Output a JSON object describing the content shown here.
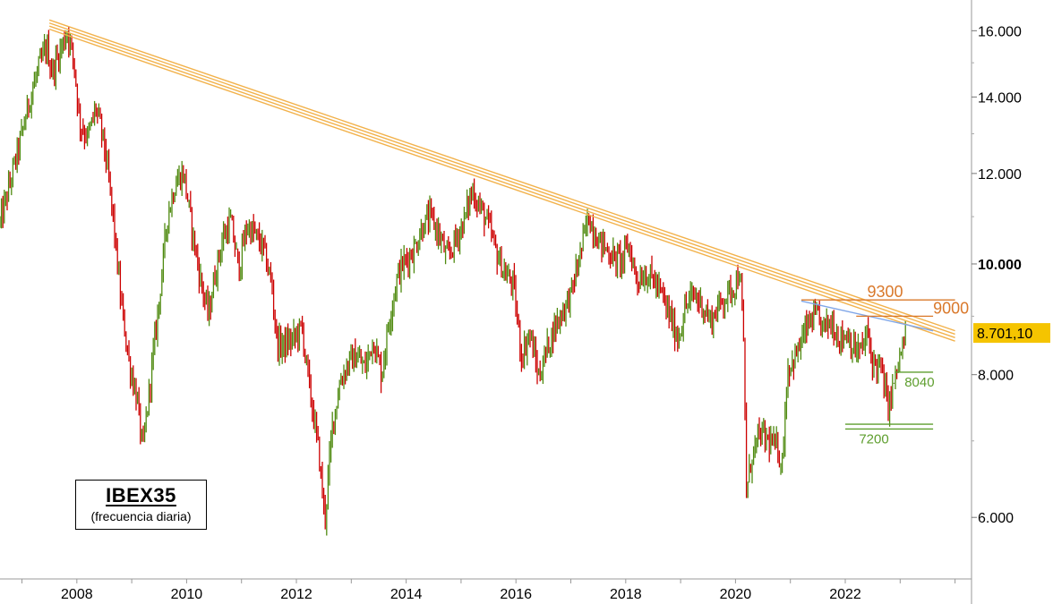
{
  "chart_data": {
    "type": "candlestick",
    "title": "IBEX35",
    "subtitle": "(frecuencia diaria)",
    "y_scale": "log",
    "ylim": [
      5300,
      16900
    ],
    "xlim": [
      2006.6,
      2024.3
    ],
    "y_ticks": [
      {
        "value": 16000,
        "label": "16.000",
        "bold": false
      },
      {
        "value": 14000,
        "label": "14.000",
        "bold": false
      },
      {
        "value": 12000,
        "label": "12.000",
        "bold": false
      },
      {
        "value": 10000,
        "label": "10.000",
        "bold": true
      },
      {
        "value": 8000,
        "label": "8.000",
        "bold": false
      },
      {
        "value": 6000,
        "label": "6.000",
        "bold": false
      }
    ],
    "x_ticks": [
      {
        "value": 2008,
        "label": "2008"
      },
      {
        "value": 2010,
        "label": "2010"
      },
      {
        "value": 2012,
        "label": "2012"
      },
      {
        "value": 2014,
        "label": "2014"
      },
      {
        "value": 2016,
        "label": "2016"
      },
      {
        "value": 2018,
        "label": "2018"
      },
      {
        "value": 2020,
        "label": "2020"
      },
      {
        "value": 2022,
        "label": "2022"
      }
    ],
    "last_price": {
      "value": 8701.1,
      "label": "8.701,10",
      "color": "#f5c400"
    },
    "colors": {
      "up": "#4f8a10",
      "down": "#cc0000",
      "trend": "#f2b24c",
      "blue_line": "#7fa6e8",
      "orange_level": "#d9782a",
      "green_level": "#5e9e2e"
    },
    "price_path": [
      [
        2006.6,
        10850
      ],
      [
        2006.75,
        11600
      ],
      [
        2006.95,
        12700
      ],
      [
        2007.15,
        14000
      ],
      [
        2007.3,
        14800
      ],
      [
        2007.45,
        15500
      ],
      [
        2007.55,
        14700
      ],
      [
        2007.7,
        15400
      ],
      [
        2007.83,
        16000
      ],
      [
        2007.95,
        15000
      ],
      [
        2008.05,
        13300
      ],
      [
        2008.2,
        12900
      ],
      [
        2008.35,
        13700
      ],
      [
        2008.5,
        12700
      ],
      [
        2008.65,
        11100
      ],
      [
        2008.8,
        9300
      ],
      [
        2008.95,
        8200
      ],
      [
        2009.1,
        7600
      ],
      [
        2009.2,
        6850
      ],
      [
        2009.35,
        8000
      ],
      [
        2009.5,
        9300
      ],
      [
        2009.65,
        11000
      ],
      [
        2009.8,
        11800
      ],
      [
        2009.95,
        12000
      ],
      [
        2010.1,
        10700
      ],
      [
        2010.25,
        9700
      ],
      [
        2010.4,
        9000
      ],
      [
        2010.5,
        9700
      ],
      [
        2010.65,
        10500
      ],
      [
        2010.8,
        10900
      ],
      [
        2010.95,
        9900
      ],
      [
        2011.1,
        10800
      ],
      [
        2011.25,
        10600
      ],
      [
        2011.4,
        10300
      ],
      [
        2011.55,
        9600
      ],
      [
        2011.65,
        8500
      ],
      [
        2011.8,
        8500
      ],
      [
        2011.95,
        8600
      ],
      [
        2012.1,
        8800
      ],
      [
        2012.25,
        7700
      ],
      [
        2012.4,
        6900
      ],
      [
        2012.52,
        5960
      ],
      [
        2012.65,
        7200
      ],
      [
        2012.8,
        7900
      ],
      [
        2012.95,
        8200
      ],
      [
        2013.1,
        8300
      ],
      [
        2013.25,
        8100
      ],
      [
        2013.4,
        8600
      ],
      [
        2013.55,
        8000
      ],
      [
        2013.7,
        9000
      ],
      [
        2013.85,
        9800
      ],
      [
        2014.0,
        10100
      ],
      [
        2014.15,
        10300
      ],
      [
        2014.3,
        10800
      ],
      [
        2014.45,
        11000
      ],
      [
        2014.6,
        10600
      ],
      [
        2014.75,
        10100
      ],
      [
        2014.9,
        10500
      ],
      [
        2015.05,
        10900
      ],
      [
        2015.2,
        11600
      ],
      [
        2015.35,
        11200
      ],
      [
        2015.5,
        10800
      ],
      [
        2015.65,
        10200
      ],
      [
        2015.8,
        9800
      ],
      [
        2015.95,
        9600
      ],
      [
        2016.1,
        8300
      ],
      [
        2016.25,
        8700
      ],
      [
        2016.42,
        7950
      ],
      [
        2016.55,
        8400
      ],
      [
        2016.7,
        8800
      ],
      [
        2016.85,
        9100
      ],
      [
        2017.0,
        9400
      ],
      [
        2017.15,
        10100
      ],
      [
        2017.32,
        11000
      ],
      [
        2017.5,
        10500
      ],
      [
        2017.65,
        10300
      ],
      [
        2017.8,
        10100
      ],
      [
        2017.95,
        10100
      ],
      [
        2018.05,
        10400
      ],
      [
        2018.2,
        9700
      ],
      [
        2018.35,
        9800
      ],
      [
        2018.5,
        9700
      ],
      [
        2018.65,
        9400
      ],
      [
        2018.8,
        9000
      ],
      [
        2018.95,
        8600
      ],
      [
        2019.1,
        9200
      ],
      [
        2019.25,
        9400
      ],
      [
        2019.4,
        9200
      ],
      [
        2019.55,
        8900
      ],
      [
        2019.7,
        9200
      ],
      [
        2019.85,
        9400
      ],
      [
        2020.0,
        9600
      ],
      [
        2020.08,
        9900
      ],
      [
        2020.15,
        8400
      ],
      [
        2020.2,
        6300
      ],
      [
        2020.3,
        6800
      ],
      [
        2020.45,
        7100
      ],
      [
        2020.6,
        7000
      ],
      [
        2020.75,
        6900
      ],
      [
        2020.85,
        6700
      ],
      [
        2020.95,
        8100
      ],
      [
        2021.1,
        8300
      ],
      [
        2021.3,
        8800
      ],
      [
        2021.45,
        9000
      ],
      [
        2021.6,
        8800
      ],
      [
        2021.75,
        8900
      ],
      [
        2021.9,
        8600
      ],
      [
        2022.05,
        8700
      ],
      [
        2022.15,
        8400
      ],
      [
        2022.3,
        8400
      ],
      [
        2022.4,
        8700
      ],
      [
        2022.5,
        8200
      ],
      [
        2022.65,
        8100
      ],
      [
        2022.78,
        7500
      ],
      [
        2022.9,
        7900
      ],
      [
        2023.0,
        8300
      ],
      [
        2023.12,
        8701
      ]
    ],
    "annotations": {
      "trend_lines": [
        {
          "from": [
            2007.5,
            16350
          ],
          "to": [
            2024.0,
            8740
          ]
        },
        {
          "from": [
            2007.5,
            16250
          ],
          "to": [
            2024.0,
            8680
          ]
        },
        {
          "from": [
            2007.5,
            16150
          ],
          "to": [
            2024.0,
            8620
          ]
        },
        {
          "from": [
            2007.5,
            16050
          ],
          "to": [
            2024.0,
            8560
          ]
        }
      ],
      "blue_line": {
        "from": [
          2021.2,
          9280
        ],
        "to": [
          2023.6,
          8740
        ]
      },
      "levels": [
        {
          "value": 9300,
          "label": "9300",
          "color": "orange",
          "from": 2021.2,
          "to": 2024.0,
          "label_x": 2022.4
        },
        {
          "value": 9000,
          "label": "9000",
          "color": "orange",
          "from": 2022.2,
          "to": 2023.6,
          "label_x": 2023.6
        },
        {
          "value": 8040,
          "label": "8040",
          "color": "green",
          "from": 2022.9,
          "to": 2023.6,
          "label_x": 2023.08
        },
        {
          "value": 7240,
          "label": "",
          "color": "green",
          "from": 2022.0,
          "to": 2023.6,
          "label_x": null
        },
        {
          "value": 7170,
          "label": "7200",
          "color": "green",
          "from": 2022.0,
          "to": 2023.6,
          "label_x": 2022.25
        }
      ]
    }
  }
}
